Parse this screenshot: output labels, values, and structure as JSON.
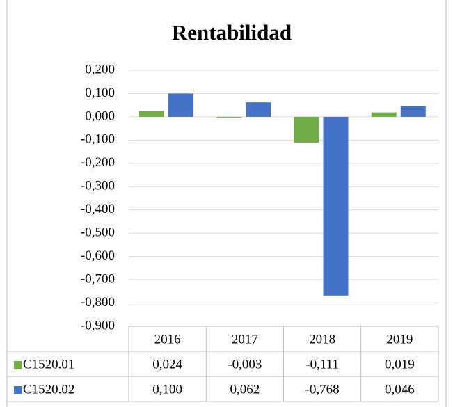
{
  "chart_data": {
    "type": "bar",
    "title": "Rentabilidad",
    "categories": [
      "2016",
      "2017",
      "2018",
      "2019"
    ],
    "series": [
      {
        "name": "C1520.01",
        "color": "#70ad47",
        "values": [
          0.024,
          -0.003,
          -0.111,
          0.019
        ],
        "value_labels": [
          "0,024",
          "-0,003",
          "-0,111",
          "0,019"
        ]
      },
      {
        "name": "C1520.02",
        "color": "#4472c4",
        "values": [
          0.1,
          0.062,
          -0.768,
          0.046
        ],
        "value_labels": [
          "0,100",
          "0,062",
          "-0,768",
          "0,046"
        ]
      }
    ],
    "ylim": [
      -0.9,
      0.2
    ],
    "yticks": [
      {
        "value": 0.2,
        "label": "0,200"
      },
      {
        "value": 0.1,
        "label": "0,100"
      },
      {
        "value": 0,
        "label": "0,000"
      },
      {
        "value": -0.1,
        "label": "-0,100"
      },
      {
        "value": -0.2,
        "label": "-0,200"
      },
      {
        "value": -0.3,
        "label": "-0,300"
      },
      {
        "value": -0.4,
        "label": "-0,400"
      },
      {
        "value": -0.5,
        "label": "-0,500"
      },
      {
        "value": -0.6,
        "label": "-0,600"
      },
      {
        "value": -0.7,
        "label": "-0,700"
      },
      {
        "value": -0.8,
        "label": "-0,800"
      },
      {
        "value": -0.9,
        "label": "-0,900"
      }
    ],
    "grid": true
  }
}
